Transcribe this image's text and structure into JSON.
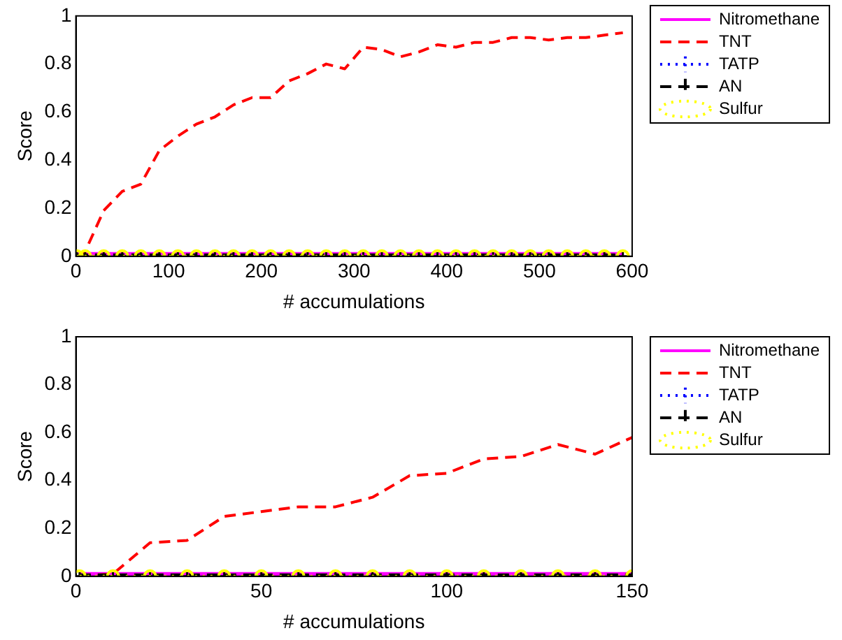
{
  "chart_data": [
    {
      "type": "line",
      "xlabel": "# accumulations",
      "ylabel": "Score",
      "xlim": [
        0,
        600
      ],
      "xticks": [
        0,
        100,
        200,
        300,
        400,
        500,
        600
      ],
      "ylim": [
        0,
        1
      ],
      "yticks": [
        0,
        0.2,
        0.4,
        0.6,
        0.8,
        1
      ],
      "legend": "right",
      "x": [
        1,
        10,
        30,
        50,
        70,
        90,
        110,
        130,
        150,
        170,
        190,
        210,
        230,
        250,
        270,
        290,
        310,
        330,
        350,
        370,
        390,
        410,
        430,
        450,
        470,
        490,
        510,
        530,
        550,
        570,
        590
      ],
      "series": [
        {
          "name": "Nitromethane",
          "color": "#ff00ff",
          "line_style": "solid",
          "marker": "none",
          "values": [
            0,
            0,
            0,
            0,
            0,
            0,
            0,
            0,
            0,
            0,
            0,
            0,
            0,
            0,
            0,
            0,
            0,
            0,
            0,
            0,
            0,
            0,
            0,
            0,
            0,
            0,
            0,
            0,
            0,
            0,
            0
          ]
        },
        {
          "name": "TNT",
          "color": "#ff0000",
          "line_style": "dashed",
          "marker": "none",
          "values": [
            0,
            0.02,
            0.19,
            0.27,
            0.3,
            0.44,
            0.5,
            0.55,
            0.58,
            0.63,
            0.66,
            0.66,
            0.73,
            0.76,
            0.8,
            0.78,
            0.87,
            0.86,
            0.83,
            0.85,
            0.88,
            0.87,
            0.89,
            0.89,
            0.91,
            0.91,
            0.9,
            0.91,
            0.91,
            0.92,
            0.93
          ]
        },
        {
          "name": "TATP",
          "color": "#0000ff",
          "line_style": "dotted",
          "marker": "cross",
          "values": [
            null,
            null,
            null,
            null,
            null,
            null,
            null,
            null,
            null,
            null,
            null,
            null,
            null,
            null,
            null,
            null,
            null,
            null,
            null,
            null,
            null,
            null,
            null,
            null,
            null,
            null,
            null,
            null,
            null,
            null,
            null
          ]
        },
        {
          "name": "AN",
          "color": "#000000",
          "line_style": "dashed",
          "marker": "cross",
          "values": [
            0,
            0,
            0,
            0,
            0,
            0,
            0,
            0,
            0,
            0,
            0,
            0,
            0,
            0,
            0,
            0,
            0,
            0,
            0,
            0,
            0,
            0,
            0,
            0,
            0,
            0,
            0,
            0,
            0,
            0,
            0
          ]
        },
        {
          "name": "Sulfur",
          "color": "#ffff00",
          "line_style": "dotted",
          "marker": "circle",
          "values": [
            0,
            0,
            0,
            0,
            0,
            0,
            0,
            0,
            0,
            0,
            0,
            0,
            0,
            0,
            0,
            0,
            0,
            0,
            0,
            0,
            0,
            0,
            0,
            0,
            0,
            0,
            0,
            0,
            0,
            0,
            0
          ]
        }
      ]
    },
    {
      "type": "line",
      "xlabel": "# accumulations",
      "ylabel": "Score",
      "xlim": [
        0,
        150
      ],
      "xticks": [
        0,
        50,
        100,
        150
      ],
      "ylim": [
        0,
        1
      ],
      "yticks": [
        0,
        0.2,
        0.4,
        0.6,
        0.8,
        1
      ],
      "legend": "right",
      "x": [
        1,
        10,
        20,
        30,
        40,
        50,
        60,
        70,
        80,
        90,
        100,
        110,
        120,
        130,
        140,
        150
      ],
      "series": [
        {
          "name": "Nitromethane",
          "color": "#ff00ff",
          "line_style": "solid",
          "marker": "none",
          "values": [
            0,
            0,
            0,
            0,
            0,
            0,
            0,
            0,
            0,
            0,
            0,
            0,
            0,
            0,
            0,
            0
          ]
        },
        {
          "name": "TNT",
          "color": "#ff0000",
          "line_style": "dashed",
          "marker": "none",
          "values": [
            0,
            0.01,
            0.14,
            0.15,
            0.25,
            0.27,
            0.29,
            0.29,
            0.33,
            0.42,
            0.43,
            0.49,
            0.5,
            0.55,
            0.51,
            0.58
          ]
        },
        {
          "name": "TATP",
          "color": "#0000ff",
          "line_style": "dotted",
          "marker": "cross",
          "values": [
            null,
            null,
            null,
            null,
            null,
            null,
            null,
            null,
            null,
            null,
            null,
            null,
            null,
            null,
            null,
            null
          ]
        },
        {
          "name": "AN",
          "color": "#000000",
          "line_style": "dashed",
          "marker": "cross",
          "values": [
            0,
            0,
            0,
            0,
            0,
            0,
            0,
            0,
            0,
            0,
            0,
            0,
            0,
            0,
            0,
            0
          ]
        },
        {
          "name": "Sulfur",
          "color": "#ffff00",
          "line_style": "dotted",
          "marker": "circle",
          "values": [
            0,
            0,
            0,
            0,
            0,
            0,
            0,
            0,
            0,
            0,
            0,
            0,
            0,
            0,
            0,
            0
          ]
        }
      ]
    }
  ]
}
